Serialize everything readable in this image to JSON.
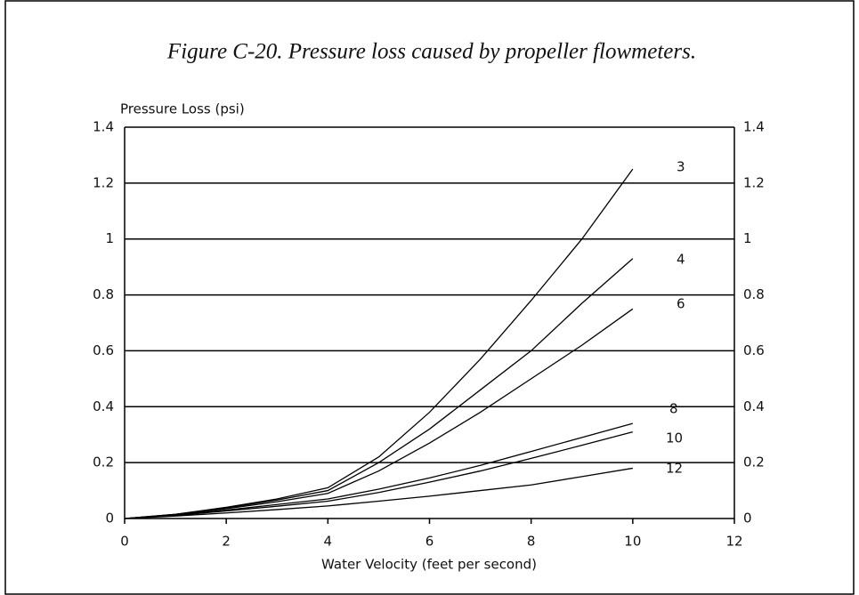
{
  "chart_data": {
    "type": "line",
    "title": "Figure C-20. Pressure loss caused by propeller flowmeters.",
    "ylabel": "Pressure Loss (psi)",
    "xlabel": "Water Velocity (feet per second)",
    "x": [
      0,
      1,
      2,
      3,
      4,
      5,
      6,
      7,
      8,
      9,
      10
    ],
    "series": [
      {
        "name": "3",
        "color": "#000000",
        "values": [
          0,
          0.015,
          0.04,
          0.07,
          0.11,
          0.22,
          0.38,
          0.57,
          0.78,
          1.0,
          1.25
        ]
      },
      {
        "name": "4",
        "color": "#000000",
        "values": [
          0,
          0.015,
          0.038,
          0.066,
          0.1,
          0.2,
          0.32,
          0.46,
          0.6,
          0.77,
          0.93
        ]
      },
      {
        "name": "6",
        "color": "#000000",
        "values": [
          0,
          0.014,
          0.035,
          0.06,
          0.09,
          0.17,
          0.27,
          0.38,
          0.5,
          0.62,
          0.75
        ]
      },
      {
        "name": "8",
        "color": "#000000",
        "values": [
          0,
          0.012,
          0.03,
          0.05,
          0.07,
          0.105,
          0.145,
          0.19,
          0.24,
          0.29,
          0.34
        ]
      },
      {
        "name": "10",
        "color": "#000000",
        "values": [
          0,
          0.011,
          0.027,
          0.044,
          0.062,
          0.093,
          0.13,
          0.17,
          0.215,
          0.262,
          0.31
        ]
      },
      {
        "name": "12",
        "color": "#000000",
        "values": [
          0,
          0.009,
          0.02,
          0.032,
          0.045,
          0.062,
          0.08,
          0.1,
          0.12,
          0.15,
          0.18
        ]
      }
    ],
    "xlim": [
      0,
      12
    ],
    "xticks": [
      0,
      2,
      4,
      6,
      8,
      10,
      12
    ],
    "ylim": [
      0,
      1.4
    ],
    "yticks": [
      0,
      0.2,
      0.4,
      0.6,
      0.8,
      1,
      1.2,
      1.4
    ],
    "grid": true
  }
}
